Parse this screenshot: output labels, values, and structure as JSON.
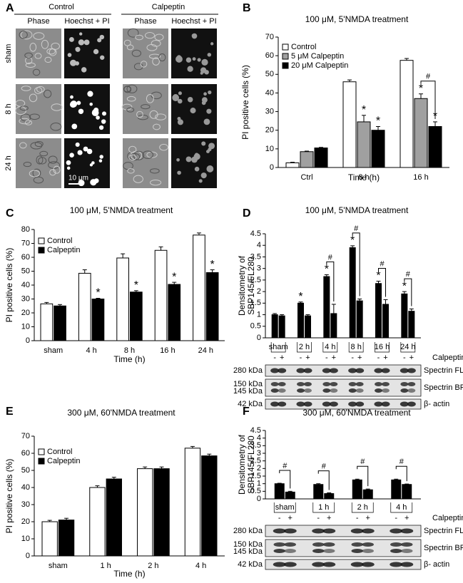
{
  "panel_letters": [
    "A",
    "B",
    "C",
    "D",
    "E",
    "F"
  ],
  "panel_a": {
    "groups": [
      "Control",
      "Calpeptin"
    ],
    "columns": [
      "Phase",
      "Hoechst + PI",
      "Phase",
      "Hoechst + PI"
    ],
    "rows": [
      "sham",
      "8 h",
      "24 h"
    ],
    "scale_bar": "10 μm"
  },
  "blots": [
    {
      "left_labels": [
        "280 kDa",
        "150 kDa",
        "145 kDa",
        "42 kDa"
      ],
      "right_labels": [
        "Spectrin FL",
        "Spectrin BP",
        "β- actin"
      ]
    },
    {
      "left_labels": [
        "280 kDa",
        "150 kDa",
        "145 kDa",
        "42 kDa"
      ],
      "right_labels": [
        "Spectrin FL",
        "Spectrin BP",
        "β- actin"
      ]
    }
  ],
  "chart_data": [
    {
      "type": "bar",
      "title": "100 μM, 5'NMDA treatment",
      "ylabel": "PI positive cells (%)",
      "xlabel": "Time (h)",
      "categories": [
        "Ctrl",
        "8 h",
        "16 h"
      ],
      "series": [
        {
          "name": "Control",
          "color": "#ffffff",
          "values": [
            2.5,
            46,
            57.5
          ],
          "errors": [
            0.3,
            1,
            1
          ]
        },
        {
          "name": "5 μM Calpeptin",
          "color": "#a0a0a0",
          "values": [
            8.5,
            24.5,
            37
          ],
          "errors": [
            0.3,
            3.5,
            2.5
          ]
        },
        {
          "name": "20 μM Calpeptin",
          "color": "#000000",
          "values": [
            10.5,
            20,
            22
          ],
          "errors": [
            0.3,
            2,
            2.5
          ]
        }
      ],
      "ylim": [
        0,
        70
      ],
      "yticks": [
        0,
        10,
        20,
        30,
        40,
        50,
        60,
        70
      ],
      "legend": "top-left",
      "markers": [
        {
          "text": "*",
          "category": 1,
          "series": [
            1
          ]
        },
        {
          "text": "*",
          "category": 1,
          "series": [
            2
          ]
        },
        {
          "text": "*",
          "category": 2,
          "series": [
            1
          ]
        },
        {
          "text": "*",
          "category": 2,
          "series": [
            2
          ]
        },
        {
          "text": "#",
          "category": 2,
          "series": [
            1,
            2
          ]
        }
      ]
    },
    {
      "type": "bar",
      "title": "100 μM, 5'NMDA treatment",
      "ylabel": "PI positive cells (%)",
      "xlabel": "Time (h)",
      "categories": [
        "sham",
        "4 h",
        "8 h",
        "16 h",
        "24 h"
      ],
      "series": [
        {
          "name": "Control",
          "color": "#ffffff",
          "values": [
            26.5,
            48.5,
            59.5,
            65,
            76
          ],
          "errors": [
            1,
            2.5,
            3,
            2.5,
            1.5
          ]
        },
        {
          "name": "Calpeptin",
          "color": "#000000",
          "values": [
            25,
            30,
            35,
            40.5,
            49
          ],
          "errors": [
            1,
            0.5,
            1,
            1.5,
            2
          ]
        }
      ],
      "ylim": [
        0,
        80
      ],
      "yticks": [
        0,
        10,
        20,
        30,
        40,
        50,
        60,
        70,
        80
      ],
      "legend": "top-left",
      "markers": [
        {
          "text": "*",
          "category": 1,
          "series": [
            1
          ]
        },
        {
          "text": "*",
          "category": 2,
          "series": [
            1
          ]
        },
        {
          "text": "*",
          "category": 3,
          "series": [
            1
          ]
        },
        {
          "text": "*",
          "category": 4,
          "series": [
            1
          ]
        }
      ]
    },
    {
      "type": "bar",
      "title": "100 μM, 5'NMDA treatment",
      "ylabel_lines": [
        "Densitometry of",
        "SBP145/FL280"
      ],
      "categories": [
        "sham",
        "2 h",
        "4 h",
        "8 h",
        "16 h",
        "24 h"
      ],
      "conditions": [
        "-",
        "+"
      ],
      "condition_label": "Calpeptin",
      "series": [
        {
          "color": "#000000",
          "values": [
            1.0,
            1.5,
            2.65,
            3.9,
            2.35,
            1.9
          ],
          "errors": [
            0.05,
            0.05,
            0.08,
            0.08,
            0.1,
            0.1
          ]
        },
        {
          "color": "#000000",
          "values": [
            0.95,
            0.95,
            1.05,
            1.6,
            1.45,
            1.15
          ],
          "errors": [
            0.05,
            0.05,
            0.4,
            0.08,
            0.2,
            0.1
          ]
        }
      ],
      "ylim": [
        0,
        4.5
      ],
      "yticks": [
        0,
        0.5,
        1,
        1.5,
        2,
        2.5,
        3,
        3.5,
        4,
        4.5
      ],
      "markers": [
        {
          "text": "*",
          "category": 1,
          "series": [
            0
          ]
        },
        {
          "text": "*",
          "category": 2,
          "series": [
            0
          ]
        },
        {
          "text": "*",
          "category": 3,
          "series": [
            0
          ]
        },
        {
          "text": "*",
          "category": 4,
          "series": [
            0
          ]
        },
        {
          "text": "*",
          "category": 5,
          "series": [
            0
          ]
        },
        {
          "text": "#",
          "category": 2,
          "series": [
            0,
            1
          ]
        },
        {
          "text": "#",
          "category": 3,
          "series": [
            0,
            1
          ]
        },
        {
          "text": "#",
          "category": 4,
          "series": [
            0,
            1
          ]
        },
        {
          "text": "#",
          "category": 5,
          "series": [
            0,
            1
          ]
        }
      ]
    },
    {
      "type": "bar",
      "title": "300 μM, 60'NMDA treatment",
      "ylabel": "PI positive cells (%)",
      "xlabel": "Time (h)",
      "categories": [
        "sham",
        "1 h",
        "2 h",
        "4 h"
      ],
      "series": [
        {
          "name": "Control",
          "color": "#ffffff",
          "values": [
            20,
            40,
            51,
            63
          ],
          "errors": [
            0.8,
            1,
            1,
            1
          ]
        },
        {
          "name": "Calpeptin",
          "color": "#000000",
          "values": [
            21,
            45,
            51,
            58.5
          ],
          "errors": [
            1,
            1,
            1,
            1
          ]
        }
      ],
      "ylim": [
        0,
        70
      ],
      "yticks": [
        0,
        10,
        20,
        30,
        40,
        50,
        60,
        70
      ],
      "legend": "top-left",
      "markers": []
    },
    {
      "type": "bar",
      "title": "300 μM, 60'NMDA treatment",
      "ylabel_lines": [
        "Densitometry of",
        "SBP145/FL280"
      ],
      "categories": [
        "sham",
        "1 h",
        "2 h",
        "4 h"
      ],
      "conditions": [
        "-",
        "+"
      ],
      "condition_label": "Calpeptin",
      "series": [
        {
          "color": "#000000",
          "values": [
            1.0,
            0.95,
            1.25,
            1.25
          ],
          "errors": [
            0.03,
            0.05,
            0.05,
            0.05
          ]
        },
        {
          "color": "#000000",
          "values": [
            0.45,
            0.35,
            0.6,
            0.95
          ],
          "errors": [
            0.05,
            0.05,
            0.05,
            0.03
          ]
        }
      ],
      "ylim": [
        0,
        4.5
      ],
      "yticks": [
        0,
        0.5,
        1,
        1.5,
        2,
        2.5,
        3,
        3.5,
        4,
        4.5
      ],
      "markers": [
        {
          "text": "#",
          "category": 0,
          "series": [
            0,
            1
          ]
        },
        {
          "text": "#",
          "category": 1,
          "series": [
            0,
            1
          ]
        },
        {
          "text": "#",
          "category": 2,
          "series": [
            0,
            1
          ]
        },
        {
          "text": "#",
          "category": 3,
          "series": [
            0,
            1
          ]
        }
      ]
    }
  ]
}
